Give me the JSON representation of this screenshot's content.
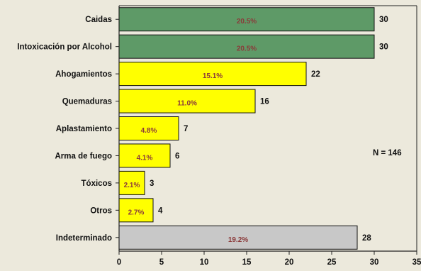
{
  "chart_data": {
    "type": "bar",
    "orientation": "horizontal",
    "title": "",
    "xlabel": "",
    "ylabel": "",
    "xlim": [
      0,
      35
    ],
    "x_ticks": [
      0,
      5,
      10,
      15,
      20,
      25,
      30,
      35
    ],
    "grid": false,
    "note": "N = 146",
    "categories": [
      "Caidas",
      "Intoxicación por Alcohol",
      "Ahogamientos",
      "Quemaduras",
      "Aplastamiento",
      "Arma de fuego",
      "Tóxicos",
      "Otros",
      "Indeterminado"
    ],
    "values": [
      30,
      30,
      22,
      16,
      7,
      6,
      3,
      4,
      28
    ],
    "percent_labels": [
      "20.5%",
      "20.5%",
      "15.1%",
      "11.0%",
      "4.8%",
      "4.1%",
      "2.1%",
      "2.7%",
      "19.2%"
    ],
    "bar_colors": [
      "#5e9a67",
      "#5e9a67",
      "#ffff00",
      "#ffff00",
      "#ffff00",
      "#ffff00",
      "#ffff00",
      "#ffff00",
      "#c8c8c8"
    ],
    "percent_label_color": "#8b3a3a",
    "background_color": "#ece9dc"
  }
}
